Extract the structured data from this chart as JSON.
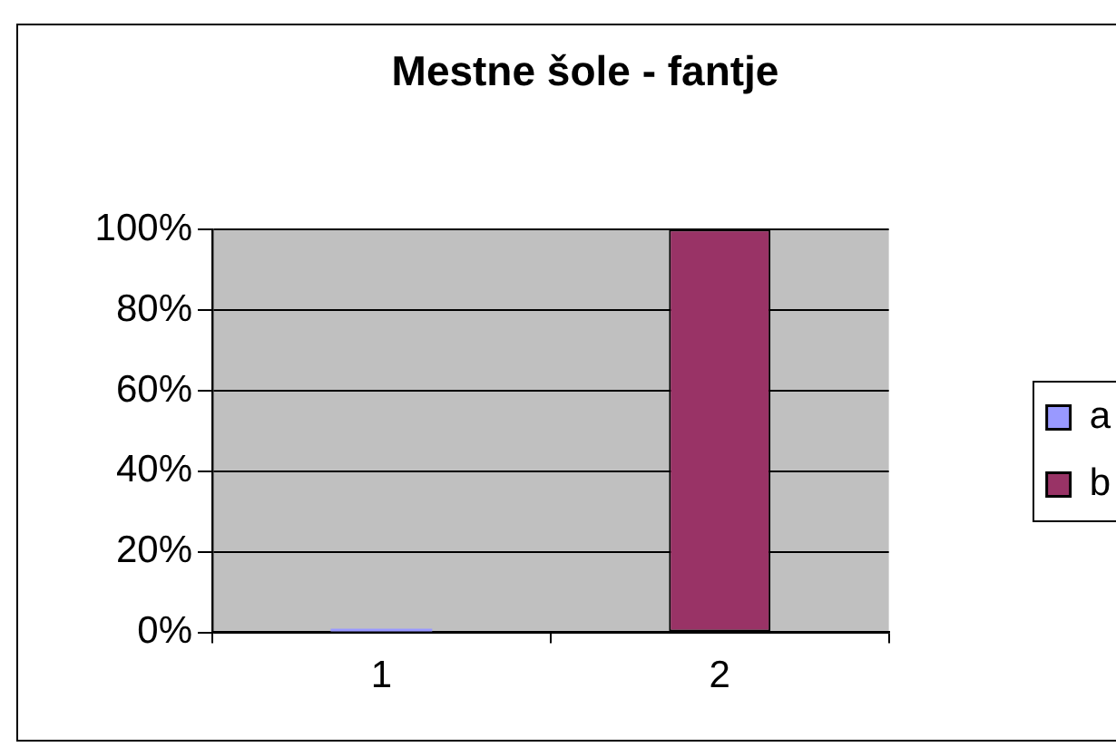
{
  "chart_data": {
    "type": "bar",
    "title": "Mestne šole - fantje",
    "categories": [
      "1",
      "2"
    ],
    "series": [
      {
        "name": "a",
        "color": "#9999ff",
        "values": [
          0,
          null
        ]
      },
      {
        "name": "b",
        "color": "#993366",
        "values": [
          null,
          100
        ]
      }
    ],
    "ylim": [
      0,
      100
    ],
    "yticks": [
      {
        "value": 0,
        "label": "0%"
      },
      {
        "value": 20,
        "label": "20%"
      },
      {
        "value": 40,
        "label": "40%"
      },
      {
        "value": 60,
        "label": "60%"
      },
      {
        "value": 80,
        "label": "80%"
      },
      {
        "value": 100,
        "label": "100%"
      }
    ],
    "grid": "y",
    "legend": "right"
  }
}
